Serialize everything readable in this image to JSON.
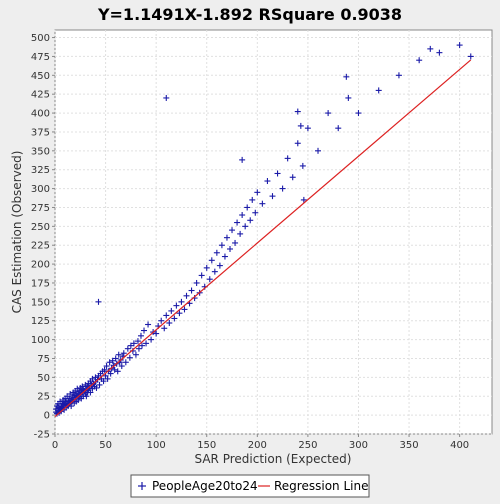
{
  "chart_data": {
    "type": "scatter",
    "title": "Y=1.1491X-1.892    RSquare 0.9038",
    "xlabel": "SAR Prediction (Expected)",
    "ylabel": "CAS Estimation (Observed)",
    "xlim": [
      0,
      432
    ],
    "ylim": [
      -25,
      510
    ],
    "xticks": [
      0,
      50,
      100,
      150,
      200,
      250,
      300,
      350,
      400
    ],
    "yticks": [
      -25,
      0,
      25,
      50,
      75,
      100,
      125,
      150,
      175,
      200,
      225,
      250,
      275,
      300,
      325,
      350,
      375,
      400,
      425,
      450,
      475,
      500
    ],
    "grid": true,
    "legend_position": "bottom",
    "regression": {
      "slope": 1.1491,
      "intercept": -1.892,
      "x_range": [
        0,
        411
      ],
      "color": "#dd2222"
    },
    "series": [
      {
        "name": "PeopleAge20to24",
        "marker": "plus",
        "color": "#1a1aa8",
        "points": [
          [
            1,
            4
          ],
          [
            1,
            8
          ],
          [
            2,
            2
          ],
          [
            2,
            12
          ],
          [
            3,
            6
          ],
          [
            3,
            15
          ],
          [
            4,
            10
          ],
          [
            4,
            3
          ],
          [
            5,
            8
          ],
          [
            5,
            18
          ],
          [
            6,
            12
          ],
          [
            6,
            5
          ],
          [
            7,
            15
          ],
          [
            7,
            9
          ],
          [
            8,
            11
          ],
          [
            8,
            20
          ],
          [
            9,
            7
          ],
          [
            9,
            14
          ],
          [
            10,
            16
          ],
          [
            10,
            22
          ],
          [
            11,
            10
          ],
          [
            11,
            18
          ],
          [
            12,
            13
          ],
          [
            12,
            25
          ],
          [
            13,
            19
          ],
          [
            13,
            12
          ],
          [
            14,
            22
          ],
          [
            14,
            15
          ],
          [
            15,
            17
          ],
          [
            15,
            28
          ],
          [
            16,
            20
          ],
          [
            16,
            12
          ],
          [
            17,
            24
          ],
          [
            17,
            18
          ],
          [
            18,
            21
          ],
          [
            18,
            30
          ],
          [
            19,
            16
          ],
          [
            19,
            26
          ],
          [
            20,
            23
          ],
          [
            20,
            32
          ],
          [
            21,
            18
          ],
          [
            21,
            27
          ],
          [
            22,
            25
          ],
          [
            22,
            35
          ],
          [
            23,
            20
          ],
          [
            23,
            29
          ],
          [
            24,
            31
          ],
          [
            24,
            24
          ],
          [
            25,
            27
          ],
          [
            25,
            36
          ],
          [
            26,
            22
          ],
          [
            26,
            33
          ],
          [
            27,
            30
          ],
          [
            27,
            38
          ],
          [
            28,
            25
          ],
          [
            28,
            34
          ],
          [
            29,
            32
          ],
          [
            30,
            28
          ],
          [
            30,
            40
          ],
          [
            31,
            35
          ],
          [
            31,
            25
          ],
          [
            32,
            38
          ],
          [
            32,
            30
          ],
          [
            33,
            42
          ],
          [
            33,
            33
          ],
          [
            34,
            36
          ],
          [
            35,
            30
          ],
          [
            35,
            45
          ],
          [
            36,
            40
          ],
          [
            37,
            35
          ],
          [
            37,
            48
          ],
          [
            38,
            42
          ],
          [
            39,
            38
          ],
          [
            40,
            50
          ],
          [
            40,
            44
          ],
          [
            41,
            36
          ],
          [
            42,
            47
          ],
          [
            43,
            52
          ],
          [
            44,
            40
          ],
          [
            45,
            55
          ],
          [
            46,
            48
          ],
          [
            47,
            58
          ],
          [
            48,
            45
          ],
          [
            49,
            60
          ],
          [
            50,
            52
          ],
          [
            51,
            65
          ],
          [
            52,
            48
          ],
          [
            53,
            58
          ],
          [
            54,
            70
          ],
          [
            55,
            55
          ],
          [
            56,
            62
          ],
          [
            57,
            72
          ],
          [
            58,
            66
          ],
          [
            59,
            60
          ],
          [
            60,
            75
          ],
          [
            61,
            68
          ],
          [
            62,
            58
          ],
          [
            63,
            80
          ],
          [
            64,
            70
          ],
          [
            65,
            73
          ],
          [
            66,
            65
          ],
          [
            67,
            78
          ],
          [
            68,
            82
          ],
          [
            70,
            70
          ],
          [
            72,
            88
          ],
          [
            74,
            76
          ],
          [
            75,
            92
          ],
          [
            77,
            85
          ],
          [
            78,
            95
          ],
          [
            80,
            80
          ],
          [
            82,
            98
          ],
          [
            83,
            88
          ],
          [
            85,
            105
          ],
          [
            86,
            92
          ],
          [
            88,
            112
          ],
          [
            90,
            95
          ],
          [
            92,
            120
          ],
          [
            95,
            100
          ],
          [
            97,
            110
          ],
          [
            100,
            108
          ],
          [
            102,
            118
          ],
          [
            105,
            125
          ],
          [
            108,
            115
          ],
          [
            110,
            132
          ],
          [
            113,
            122
          ],
          [
            115,
            138
          ],
          [
            118,
            128
          ],
          [
            120,
            145
          ],
          [
            123,
            135
          ],
          [
            125,
            150
          ],
          [
            128,
            140
          ],
          [
            130,
            158
          ],
          [
            133,
            148
          ],
          [
            135,
            165
          ],
          [
            138,
            155
          ],
          [
            140,
            175
          ],
          [
            143,
            162
          ],
          [
            145,
            185
          ],
          [
            148,
            170
          ],
          [
            150,
            195
          ],
          [
            153,
            180
          ],
          [
            155,
            205
          ],
          [
            158,
            190
          ],
          [
            160,
            215
          ],
          [
            163,
            198
          ],
          [
            165,
            225
          ],
          [
            168,
            210
          ],
          [
            170,
            235
          ],
          [
            173,
            220
          ],
          [
            175,
            245
          ],
          [
            178,
            228
          ],
          [
            180,
            255
          ],
          [
            183,
            240
          ],
          [
            185,
            265
          ],
          [
            188,
            250
          ],
          [
            190,
            275
          ],
          [
            193,
            258
          ],
          [
            195,
            285
          ],
          [
            198,
            268
          ],
          [
            200,
            295
          ],
          [
            205,
            280
          ],
          [
            210,
            310
          ],
          [
            215,
            290
          ],
          [
            220,
            320
          ],
          [
            225,
            300
          ],
          [
            230,
            340
          ],
          [
            235,
            315
          ],
          [
            240,
            360
          ],
          [
            245,
            330
          ],
          [
            250,
            380
          ],
          [
            260,
            350
          ],
          [
            270,
            400
          ],
          [
            280,
            380
          ],
          [
            290,
            420
          ],
          [
            300,
            400
          ],
          [
            320,
            430
          ],
          [
            340,
            450
          ],
          [
            360,
            470
          ],
          [
            380,
            480
          ],
          [
            400,
            490
          ],
          [
            411,
            475
          ],
          [
            110,
            420
          ],
          [
            240,
            402
          ],
          [
            243,
            383
          ],
          [
            185,
            338
          ],
          [
            288,
            448
          ],
          [
            371,
            485
          ],
          [
            246,
            285
          ],
          [
            43,
            150
          ]
        ]
      }
    ]
  },
  "legend": {
    "series_label": "PeopleAge20to24",
    "regression_label": "Regression Line"
  }
}
